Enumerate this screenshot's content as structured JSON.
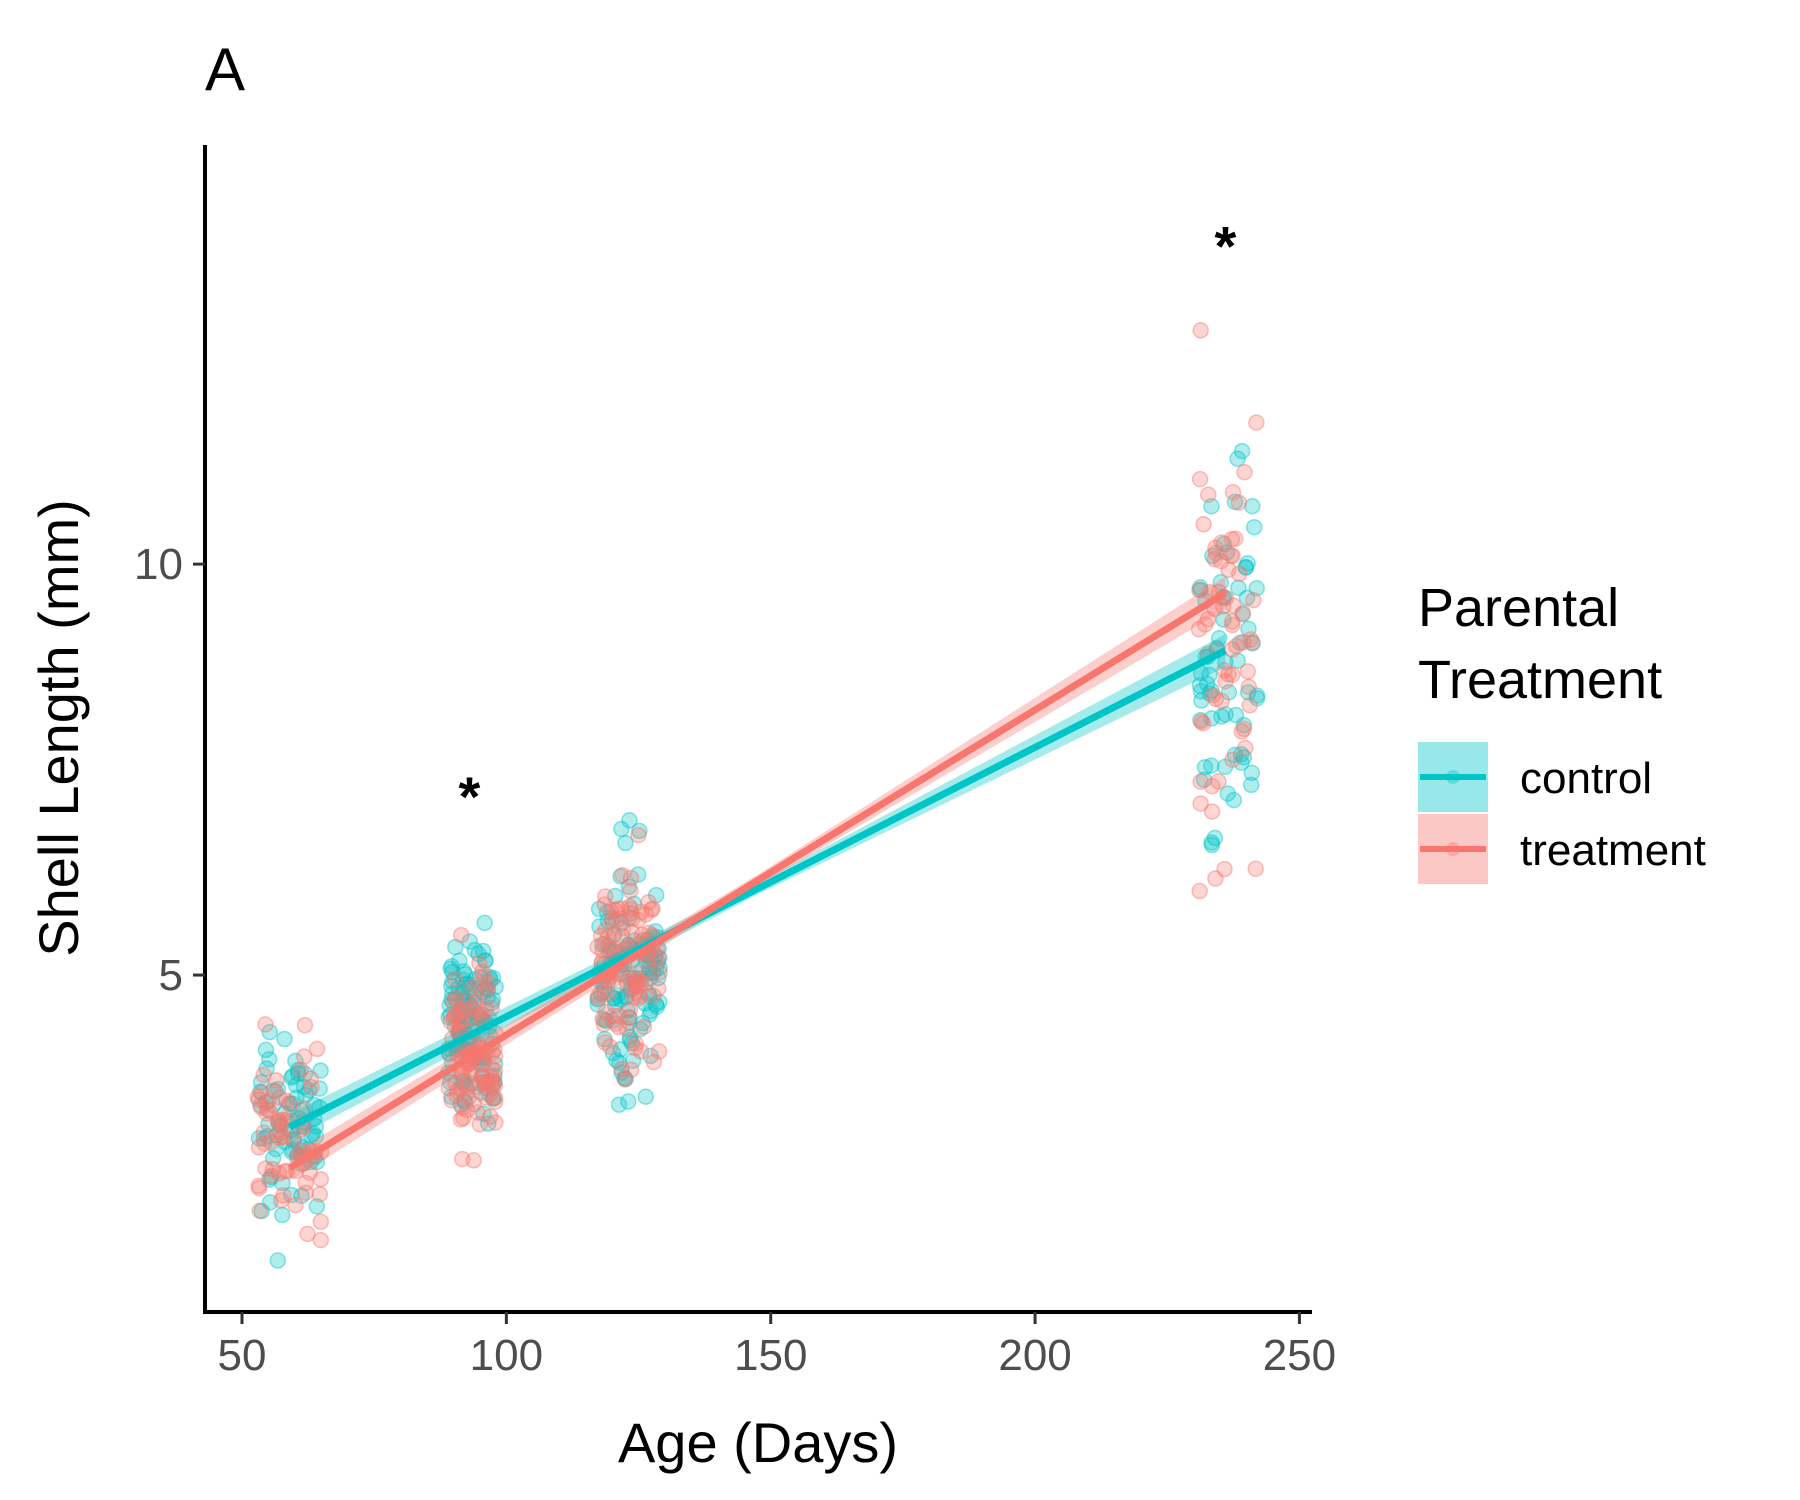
{
  "chart_data": {
    "type": "scatter",
    "panel_label": "A",
    "xlabel": "Age (Days)",
    "ylabel": "Shell Length (mm)",
    "xlim": [
      43,
      252
    ],
    "ylim": [
      0.9,
      15.1
    ],
    "xticks": [
      50,
      100,
      150,
      200,
      250
    ],
    "yticks": [
      5,
      10
    ],
    "grid": false,
    "legend": {
      "title_lines": [
        "Parental",
        "Treatment"
      ],
      "placement": "right",
      "entries": [
        "control",
        "treatment"
      ]
    },
    "colors": {
      "control": "#00C5C7",
      "treatment": "#F8766D"
    },
    "groups": [
      {
        "age_range": [
          53,
          65
        ],
        "center": 59,
        "control": {
          "mean": 3.3,
          "sd": 0.55
        },
        "treatment": {
          "mean": 3.0,
          "sd": 0.55
        }
      },
      {
        "age_range": [
          89,
          98
        ],
        "center": 93,
        "control": {
          "mean": 4.4,
          "sd": 0.6
        },
        "treatment": {
          "mean": 4.0,
          "sd": 0.55
        }
      },
      {
        "age_range": [
          117,
          129
        ],
        "center": 123,
        "control": {
          "mean": 5.1,
          "sd": 0.65
        },
        "treatment": {
          "mean": 5.0,
          "sd": 0.65
        }
      },
      {
        "age_range": [
          231,
          242
        ],
        "center": 236,
        "control": {
          "mean": 9.0,
          "sd": 1.3
        },
        "treatment": {
          "mean": 9.3,
          "sd": 1.4
        }
      }
    ],
    "series": [
      {
        "name": "control",
        "fit": {
          "x": [
            59,
            236
          ],
          "y": [
            3.15,
            8.95
          ]
        }
      },
      {
        "name": "treatment",
        "fit": {
          "x": [
            59,
            236
          ],
          "y": [
            2.65,
            9.65
          ]
        }
      }
    ],
    "annotations": [
      {
        "text": "*",
        "x": 93,
        "y": 7.3
      },
      {
        "text": "*",
        "x": 236,
        "y": 14.0
      }
    ]
  }
}
